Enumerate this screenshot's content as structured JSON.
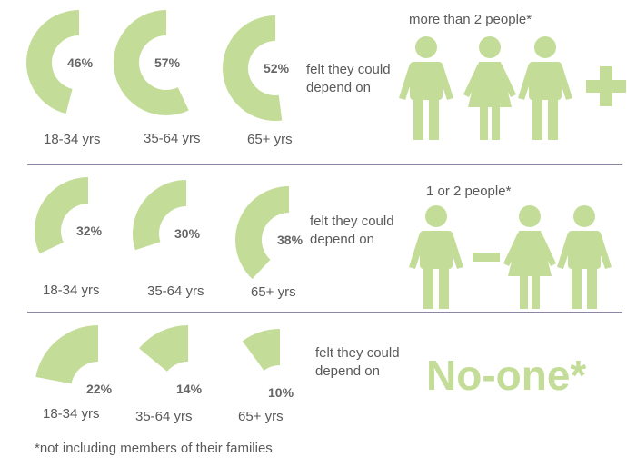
{
  "chart_data": {
    "type": "pie",
    "title": "",
    "accent_color": "#c3dd98",
    "rows": [
      {
        "depend_text": "felt they could depend on",
        "group_label": "more than 2 people*",
        "groups": [
          {
            "age": "18-34 yrs",
            "value": 46,
            "label": "46%"
          },
          {
            "age": "35-64 yrs",
            "value": 57,
            "label": "57%"
          },
          {
            "age": "65+ yrs",
            "value": 52,
            "label": "52%"
          }
        ]
      },
      {
        "depend_text": "felt they could depend on",
        "group_label": "1 or 2 people*",
        "groups": [
          {
            "age": "18-34 yrs",
            "value": 32,
            "label": "32%"
          },
          {
            "age": "35-64 yrs",
            "value": 30,
            "label": "30%"
          },
          {
            "age": "65+ yrs",
            "value": 38,
            "label": "38%"
          }
        ]
      },
      {
        "depend_text": "felt they could depend on",
        "group_label": "No-one*",
        "groups": [
          {
            "age": "18-34 yrs",
            "value": 22,
            "label": "22%"
          },
          {
            "age": "35-64 yrs",
            "value": 14,
            "label": "14%"
          },
          {
            "age": "65+ yrs",
            "value": 10,
            "label": "10%"
          }
        ]
      }
    ],
    "footnote": "*not including members of their families"
  }
}
